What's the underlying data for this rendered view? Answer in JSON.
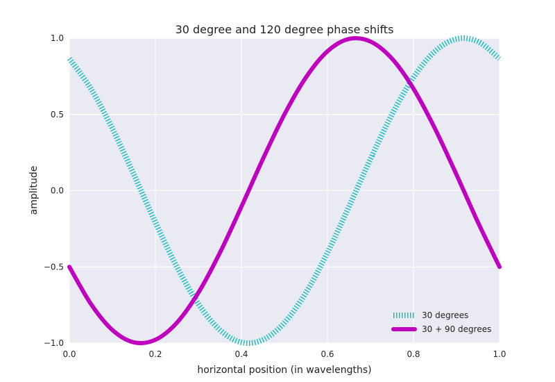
{
  "chart_data": {
    "type": "line",
    "title": "30 degree and 120 degree phase shifts",
    "xlabel": "horizontal position (in wavelengths)",
    "ylabel": "amplitude",
    "xlim": [
      0.0,
      1.0
    ],
    "ylim": [
      -1.0,
      1.0
    ],
    "xticks": [
      0.0,
      0.2,
      0.4,
      0.6,
      0.8,
      1.0
    ],
    "xtick_labels": [
      "0.0",
      "0.2",
      "0.4",
      "0.6",
      "0.8",
      "1.0"
    ],
    "yticks": [
      -1.0,
      -0.5,
      0.0,
      0.5,
      1.0
    ],
    "ytick_labels": [
      "−1.0",
      "−0.5",
      "0.0",
      "0.5",
      "1.0"
    ],
    "grid": true,
    "legend_position": "lower-right",
    "x": [
      0.0,
      0.05,
      0.1,
      0.15,
      0.2,
      0.25,
      0.3,
      0.35,
      0.4,
      0.45,
      0.5,
      0.55,
      0.6,
      0.65,
      0.7,
      0.75,
      0.8,
      0.85,
      0.9,
      0.95,
      1.0
    ],
    "series": [
      {
        "name": "30 degrees",
        "color": "#17bfbf",
        "style": "dotted",
        "values": [
          0.866,
          0.669,
          0.407,
          0.105,
          -0.208,
          -0.5,
          -0.743,
          -0.914,
          -0.995,
          -0.978,
          -0.866,
          -0.669,
          -0.407,
          -0.105,
          0.208,
          0.5,
          0.743,
          0.914,
          0.995,
          0.978,
          0.866
        ]
      },
      {
        "name": "30 + 90 degrees",
        "color": "#bf00bf",
        "style": "solid",
        "values": [
          -0.5,
          -0.743,
          -0.914,
          -0.995,
          -0.978,
          -0.866,
          -0.669,
          -0.407,
          -0.105,
          0.208,
          0.5,
          0.743,
          0.914,
          0.995,
          0.978,
          0.866,
          0.669,
          0.407,
          0.105,
          -0.208,
          -0.5
        ]
      }
    ]
  }
}
